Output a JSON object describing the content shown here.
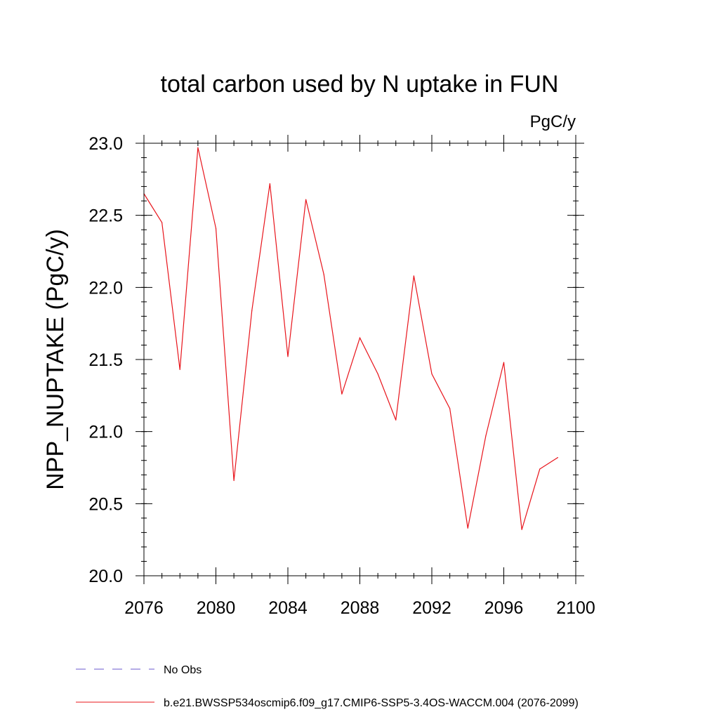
{
  "chart_data": {
    "type": "line",
    "title": "total carbon used by N uptake in FUN",
    "units_label": "PgC/y",
    "xlabel": "",
    "ylabel": "NPP_NUPTAKE  (PgC/y)",
    "xlim": [
      2076,
      2100
    ],
    "ylim": [
      20.0,
      23.0
    ],
    "x_ticks": [
      2076,
      2080,
      2084,
      2088,
      2092,
      2096,
      2100
    ],
    "x_tick_labels": [
      "2076",
      "2080",
      "2084",
      "2088",
      "2092",
      "2096",
      "2100"
    ],
    "y_ticks": [
      20.0,
      20.5,
      21.0,
      21.5,
      22.0,
      22.5,
      23.0
    ],
    "y_tick_labels": [
      "20.0",
      "20.5",
      "21.0",
      "21.5",
      "22.0",
      "22.5",
      "23.0"
    ],
    "grid": false,
    "series": [
      {
        "name": "b.e21.BWSSP534oscmip6.f09_g17.CMIP6-SSP5-3.4OS-WACCM.004 (2076-2099)",
        "color": "#e8141b",
        "style": "solid",
        "x": [
          2076,
          2077,
          2078,
          2079,
          2080,
          2081,
          2082,
          2083,
          2084,
          2085,
          2086,
          2087,
          2088,
          2089,
          2090,
          2091,
          2092,
          2093,
          2094,
          2095,
          2096,
          2097,
          2098,
          2099
        ],
        "values": [
          22.65,
          22.45,
          21.43,
          22.97,
          22.41,
          20.66,
          21.84,
          22.72,
          21.52,
          22.61,
          22.09,
          21.26,
          21.65,
          21.4,
          21.08,
          22.08,
          21.4,
          21.16,
          20.33,
          20.97,
          21.48,
          20.32,
          20.74,
          20.82
        ]
      }
    ],
    "legend": {
      "placement": "bottom-left",
      "entries": [
        {
          "label": "No Obs",
          "color": "#6a5acd",
          "style": "dashed"
        },
        {
          "label": "b.e21.BWSSP534oscmip6.f09_g17.CMIP6-SSP5-3.4OS-WACCM.004 (2076-2099)",
          "color": "#e8141b",
          "style": "solid"
        }
      ]
    }
  }
}
